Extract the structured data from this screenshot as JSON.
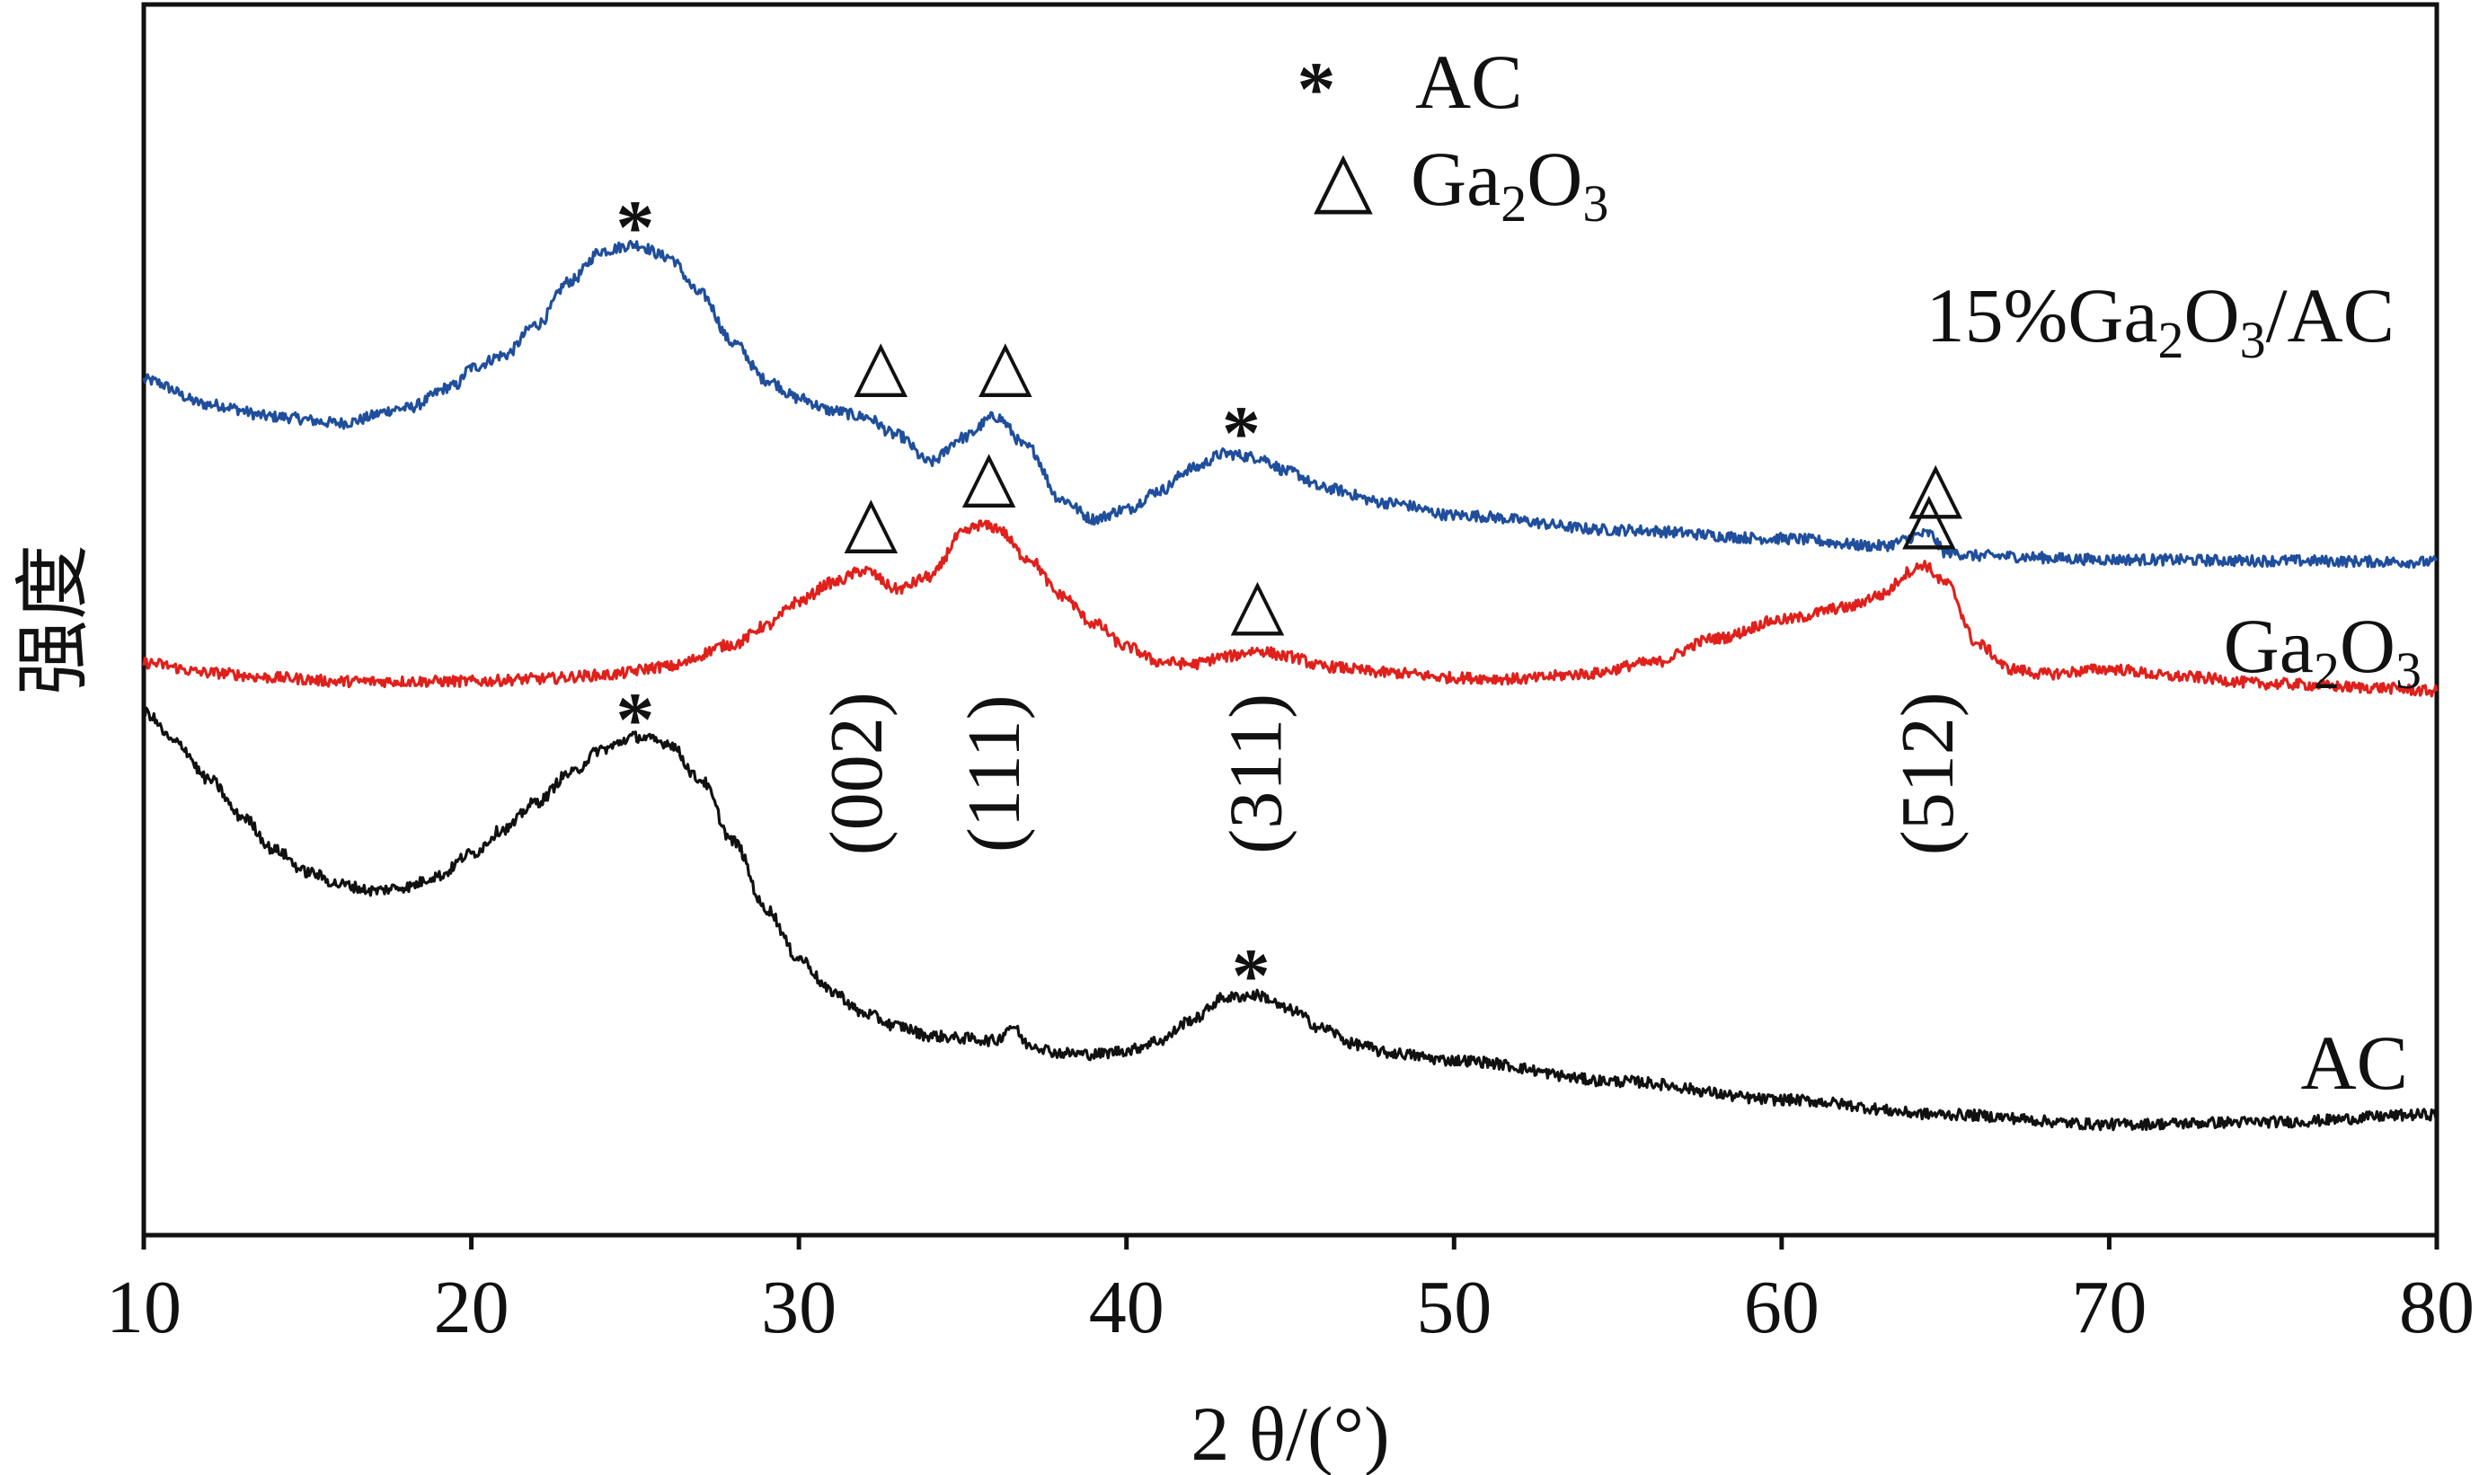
{
  "chart_data": {
    "type": "line",
    "title": "",
    "xlabel": "2 θ/(°)",
    "ylabel": "强度",
    "xlim": [
      10,
      80
    ],
    "ylim": [
      0,
      1
    ],
    "x_ticks": [
      10,
      20,
      30,
      40,
      50,
      60,
      70,
      80
    ],
    "y_ticks": [],
    "grid": false,
    "legend": {
      "placement": "top-center",
      "entries": [
        {
          "marker": "*",
          "marker_name": "asterisk",
          "label_main": "AC",
          "label_sub": "",
          "label_tail": ""
        },
        {
          "marker": "△",
          "marker_name": "triangle",
          "label_main": "Ga",
          "label_sub": "2",
          "label_main2": "O",
          "label_sub2": "3"
        }
      ]
    },
    "series": [
      {
        "name": "15%Ga2O3/AC",
        "color": "#1f4e9c",
        "label": {
          "p1": "15%Ga",
          "s1": "2",
          "p2": "O",
          "s2": "3",
          "p3": "/AC"
        },
        "points": [
          [
            10,
            0.695
          ],
          [
            12,
            0.675
          ],
          [
            14,
            0.665
          ],
          [
            16,
            0.66
          ],
          [
            18,
            0.672
          ],
          [
            19.5,
            0.69
          ],
          [
            20,
            0.705
          ],
          [
            21,
            0.715
          ],
          [
            22,
            0.74
          ],
          [
            23,
            0.775
          ],
          [
            24,
            0.8
          ],
          [
            25,
            0.805
          ],
          [
            26,
            0.795
          ],
          [
            27,
            0.765
          ],
          [
            28,
            0.725
          ],
          [
            29,
            0.695
          ],
          [
            30,
            0.68
          ],
          [
            31,
            0.67
          ],
          [
            32,
            0.665
          ],
          [
            33,
            0.65
          ],
          [
            34,
            0.628
          ],
          [
            35,
            0.648
          ],
          [
            36,
            0.665
          ],
          [
            37,
            0.64
          ],
          [
            38,
            0.598
          ],
          [
            39,
            0.582
          ],
          [
            40,
            0.59
          ],
          [
            41,
            0.605
          ],
          [
            42,
            0.623
          ],
          [
            43,
            0.635
          ],
          [
            44,
            0.632
          ],
          [
            45,
            0.62
          ],
          [
            46,
            0.607
          ],
          [
            48,
            0.595
          ],
          [
            50,
            0.585
          ],
          [
            55,
            0.573
          ],
          [
            60,
            0.566
          ],
          [
            63,
            0.56
          ],
          [
            64.5,
            0.57
          ],
          [
            65,
            0.555
          ],
          [
            66,
            0.552
          ],
          [
            70,
            0.549
          ],
          [
            75,
            0.548
          ],
          [
            80,
            0.547
          ]
        ],
        "peak_annotations": [
          {
            "x": 25,
            "y": 0.805,
            "marker": "*",
            "kind": "AC"
          },
          {
            "x": 32.5,
            "y": 0.672,
            "marker": "△",
            "kind": "Ga2O3"
          },
          {
            "x": 36.3,
            "y": 0.672,
            "marker": "△",
            "kind": "Ga2O3"
          },
          {
            "x": 43.5,
            "y": 0.638,
            "marker": "*",
            "kind": "AC"
          },
          {
            "x": 64.7,
            "y": 0.573,
            "marker": "△",
            "kind": "Ga2O3"
          }
        ]
      },
      {
        "name": "Ga2O3",
        "color": "#e0201b",
        "label": {
          "p1": "Ga",
          "s1": "2",
          "p2": "O",
          "s2": "3",
          "p3": ""
        },
        "points": [
          [
            10,
            0.465
          ],
          [
            12,
            0.457
          ],
          [
            14,
            0.453
          ],
          [
            16,
            0.45
          ],
          [
            18,
            0.45
          ],
          [
            20,
            0.45
          ],
          [
            22,
            0.452
          ],
          [
            24,
            0.455
          ],
          [
            26,
            0.462
          ],
          [
            28,
            0.48
          ],
          [
            29,
            0.495
          ],
          [
            30,
            0.515
          ],
          [
            31,
            0.53
          ],
          [
            32,
            0.54
          ],
          [
            33,
            0.525
          ],
          [
            34,
            0.535
          ],
          [
            35,
            0.57
          ],
          [
            35.5,
            0.577
          ],
          [
            36,
            0.575
          ],
          [
            37,
            0.55
          ],
          [
            38,
            0.52
          ],
          [
            39,
            0.497
          ],
          [
            40,
            0.478
          ],
          [
            41,
            0.466
          ],
          [
            42,
            0.464
          ],
          [
            43,
            0.47
          ],
          [
            44,
            0.475
          ],
          [
            45,
            0.47
          ],
          [
            46,
            0.462
          ],
          [
            48,
            0.457
          ],
          [
            50,
            0.453
          ],
          [
            52,
            0.452
          ],
          [
            54,
            0.456
          ],
          [
            56,
            0.465
          ],
          [
            58,
            0.485
          ],
          [
            60,
            0.5
          ],
          [
            62,
            0.51
          ],
          [
            63,
            0.52
          ],
          [
            64,
            0.54
          ],
          [
            64.3,
            0.545
          ],
          [
            65,
            0.53
          ],
          [
            66,
            0.48
          ],
          [
            67,
            0.46
          ],
          [
            68,
            0.456
          ],
          [
            70,
            0.46
          ],
          [
            72,
            0.454
          ],
          [
            75,
            0.448
          ],
          [
            78,
            0.445
          ],
          [
            80,
            0.442
          ]
        ],
        "peak_annotations": [
          {
            "x": 32.2,
            "y": 0.545,
            "marker": "△",
            "kind": "Ga2O3"
          },
          {
            "x": 35.8,
            "y": 0.582,
            "marker": "△",
            "kind": "Ga2O3"
          },
          {
            "x": 44.0,
            "y": 0.478,
            "marker": "△",
            "kind": "Ga2O3"
          },
          {
            "x": 64.5,
            "y": 0.548,
            "marker": "△",
            "kind": "Ga2O3"
          }
        ],
        "miller_indices": [
          {
            "x": 31.8,
            "text": "(002)"
          },
          {
            "x": 36.0,
            "text": "(111)"
          },
          {
            "x": 44.0,
            "text": "(311)"
          },
          {
            "x": 64.5,
            "text": "(512)"
          }
        ]
      },
      {
        "name": "AC",
        "color": "#111111",
        "label": {
          "p1": "AC",
          "s1": "",
          "p2": "",
          "s2": "",
          "p3": ""
        },
        "points": [
          [
            10,
            0.425
          ],
          [
            11,
            0.4
          ],
          [
            12,
            0.37
          ],
          [
            13,
            0.34
          ],
          [
            14,
            0.313
          ],
          [
            15,
            0.295
          ],
          [
            16,
            0.285
          ],
          [
            17,
            0.28
          ],
          [
            18,
            0.283
          ],
          [
            19,
            0.292
          ],
          [
            20,
            0.31
          ],
          [
            21,
            0.33
          ],
          [
            22,
            0.352
          ],
          [
            23,
            0.375
          ],
          [
            24,
            0.395
          ],
          [
            25,
            0.405
          ],
          [
            26,
            0.4
          ],
          [
            27,
            0.37
          ],
          [
            28,
            0.32
          ],
          [
            29,
            0.265
          ],
          [
            30,
            0.225
          ],
          [
            31,
            0.198
          ],
          [
            32,
            0.18
          ],
          [
            33,
            0.17
          ],
          [
            34,
            0.162
          ],
          [
            35,
            0.16
          ],
          [
            36,
            0.158
          ],
          [
            36.5,
            0.17
          ],
          [
            37,
            0.155
          ],
          [
            38,
            0.148
          ],
          [
            39,
            0.147
          ],
          [
            40,
            0.15
          ],
          [
            41,
            0.158
          ],
          [
            42,
            0.175
          ],
          [
            43,
            0.193
          ],
          [
            44,
            0.195
          ],
          [
            45,
            0.183
          ],
          [
            46,
            0.168
          ],
          [
            47,
            0.155
          ],
          [
            48,
            0.148
          ],
          [
            50,
            0.142
          ],
          [
            55,
            0.125
          ],
          [
            60,
            0.11
          ],
          [
            65,
            0.098
          ],
          [
            70,
            0.09
          ],
          [
            75,
            0.092
          ],
          [
            80,
            0.098
          ]
        ],
        "peak_annotations": [
          {
            "x": 25,
            "y": 0.405,
            "marker": "*",
            "kind": "AC"
          },
          {
            "x": 43.8,
            "y": 0.197,
            "marker": "*",
            "kind": "AC"
          }
        ]
      }
    ]
  }
}
